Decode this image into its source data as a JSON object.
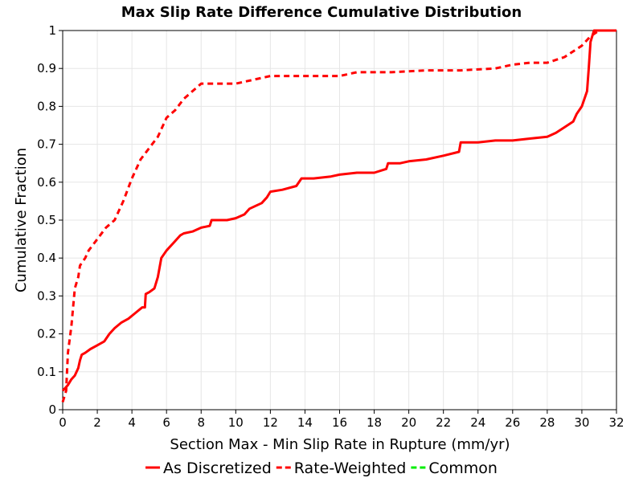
{
  "chart_data": {
    "type": "line",
    "title": "Max Slip Rate Difference Cumulative Distribution",
    "xlabel": "Section Max - Min Slip Rate in Rupture (mm/yr)",
    "ylabel": "Cumulative Fraction",
    "xlim": [
      0,
      32
    ],
    "ylim": [
      0,
      1
    ],
    "xticks": [
      "0",
      "2",
      "4",
      "6",
      "8",
      "10",
      "12",
      "14",
      "16",
      "18",
      "20",
      "22",
      "24",
      "26",
      "28",
      "30",
      "32"
    ],
    "yticks": [
      "0",
      "0.1",
      "0.2",
      "0.3",
      "0.4",
      "0.5",
      "0.6",
      "0.7",
      "0.8",
      "0.9",
      "1"
    ],
    "grid": true,
    "legend_position": "bottom",
    "series": [
      {
        "name": "As Discretized",
        "color": "#ff0000",
        "dash": "solid",
        "x": [
          0,
          0.2,
          0.3,
          0.5,
          0.7,
          0.9,
          1.0,
          1.1,
          1.3,
          1.6,
          2.0,
          2.4,
          2.7,
          3.0,
          3.4,
          3.8,
          4.2,
          4.6,
          4.75,
          4.8,
          5.0,
          5.3,
          5.5,
          5.7,
          6.0,
          6.5,
          6.8,
          7.0,
          7.5,
          8.0,
          8.5,
          8.6,
          9.5,
          10.0,
          10.5,
          10.8,
          11.5,
          11.8,
          12.0,
          12.7,
          13.5,
          13.8,
          14.5,
          15.5,
          16.0,
          17.0,
          18.0,
          18.7,
          18.8,
          19.5,
          20.0,
          21.0,
          22.0,
          22.9,
          23.0,
          23.5,
          24.0,
          25.0,
          26.0,
          27.0,
          28.0,
          28.5,
          29.0,
          29.5,
          29.7,
          30.0,
          30.3,
          30.4,
          30.5,
          30.7,
          32.0
        ],
        "values": [
          0.05,
          0.06,
          0.065,
          0.08,
          0.09,
          0.11,
          0.13,
          0.145,
          0.15,
          0.16,
          0.17,
          0.18,
          0.2,
          0.215,
          0.23,
          0.24,
          0.255,
          0.27,
          0.27,
          0.305,
          0.31,
          0.32,
          0.35,
          0.4,
          0.42,
          0.445,
          0.46,
          0.465,
          0.47,
          0.48,
          0.485,
          0.5,
          0.5,
          0.505,
          0.515,
          0.53,
          0.545,
          0.56,
          0.575,
          0.58,
          0.59,
          0.61,
          0.61,
          0.615,
          0.62,
          0.625,
          0.625,
          0.635,
          0.65,
          0.65,
          0.655,
          0.66,
          0.67,
          0.68,
          0.705,
          0.705,
          0.705,
          0.71,
          0.71,
          0.715,
          0.72,
          0.73,
          0.745,
          0.76,
          0.78,
          0.8,
          0.84,
          0.9,
          0.97,
          1.0,
          1.0
        ]
      },
      {
        "name": "Rate-Weighted",
        "color": "#ff0000",
        "dash": "dashed",
        "x": [
          0,
          0.2,
          0.3,
          0.5,
          0.7,
          0.9,
          1.0,
          1.3,
          1.5,
          2.0,
          2.5,
          3.0,
          3.5,
          4.0,
          4.5,
          5.0,
          5.5,
          6.0,
          6.5,
          7.0,
          7.5,
          8.0,
          9.0,
          10.0,
          11.0,
          12.0,
          14.0,
          16.0,
          17.0,
          19.0,
          21.0,
          23.0,
          25.0,
          26.0,
          27.0,
          28.0,
          29.0,
          30.0,
          30.5,
          31.0,
          32.0
        ],
        "values": [
          0.02,
          0.05,
          0.15,
          0.22,
          0.32,
          0.35,
          0.38,
          0.4,
          0.42,
          0.45,
          0.48,
          0.5,
          0.55,
          0.61,
          0.66,
          0.69,
          0.72,
          0.77,
          0.79,
          0.82,
          0.84,
          0.86,
          0.86,
          0.86,
          0.87,
          0.88,
          0.88,
          0.88,
          0.89,
          0.89,
          0.895,
          0.895,
          0.9,
          0.91,
          0.915,
          0.915,
          0.93,
          0.96,
          0.985,
          1.0,
          1.0
        ]
      },
      {
        "name": "Common",
        "color": "#00ee00",
        "dash": "dashed",
        "x": [],
        "values": []
      }
    ]
  }
}
